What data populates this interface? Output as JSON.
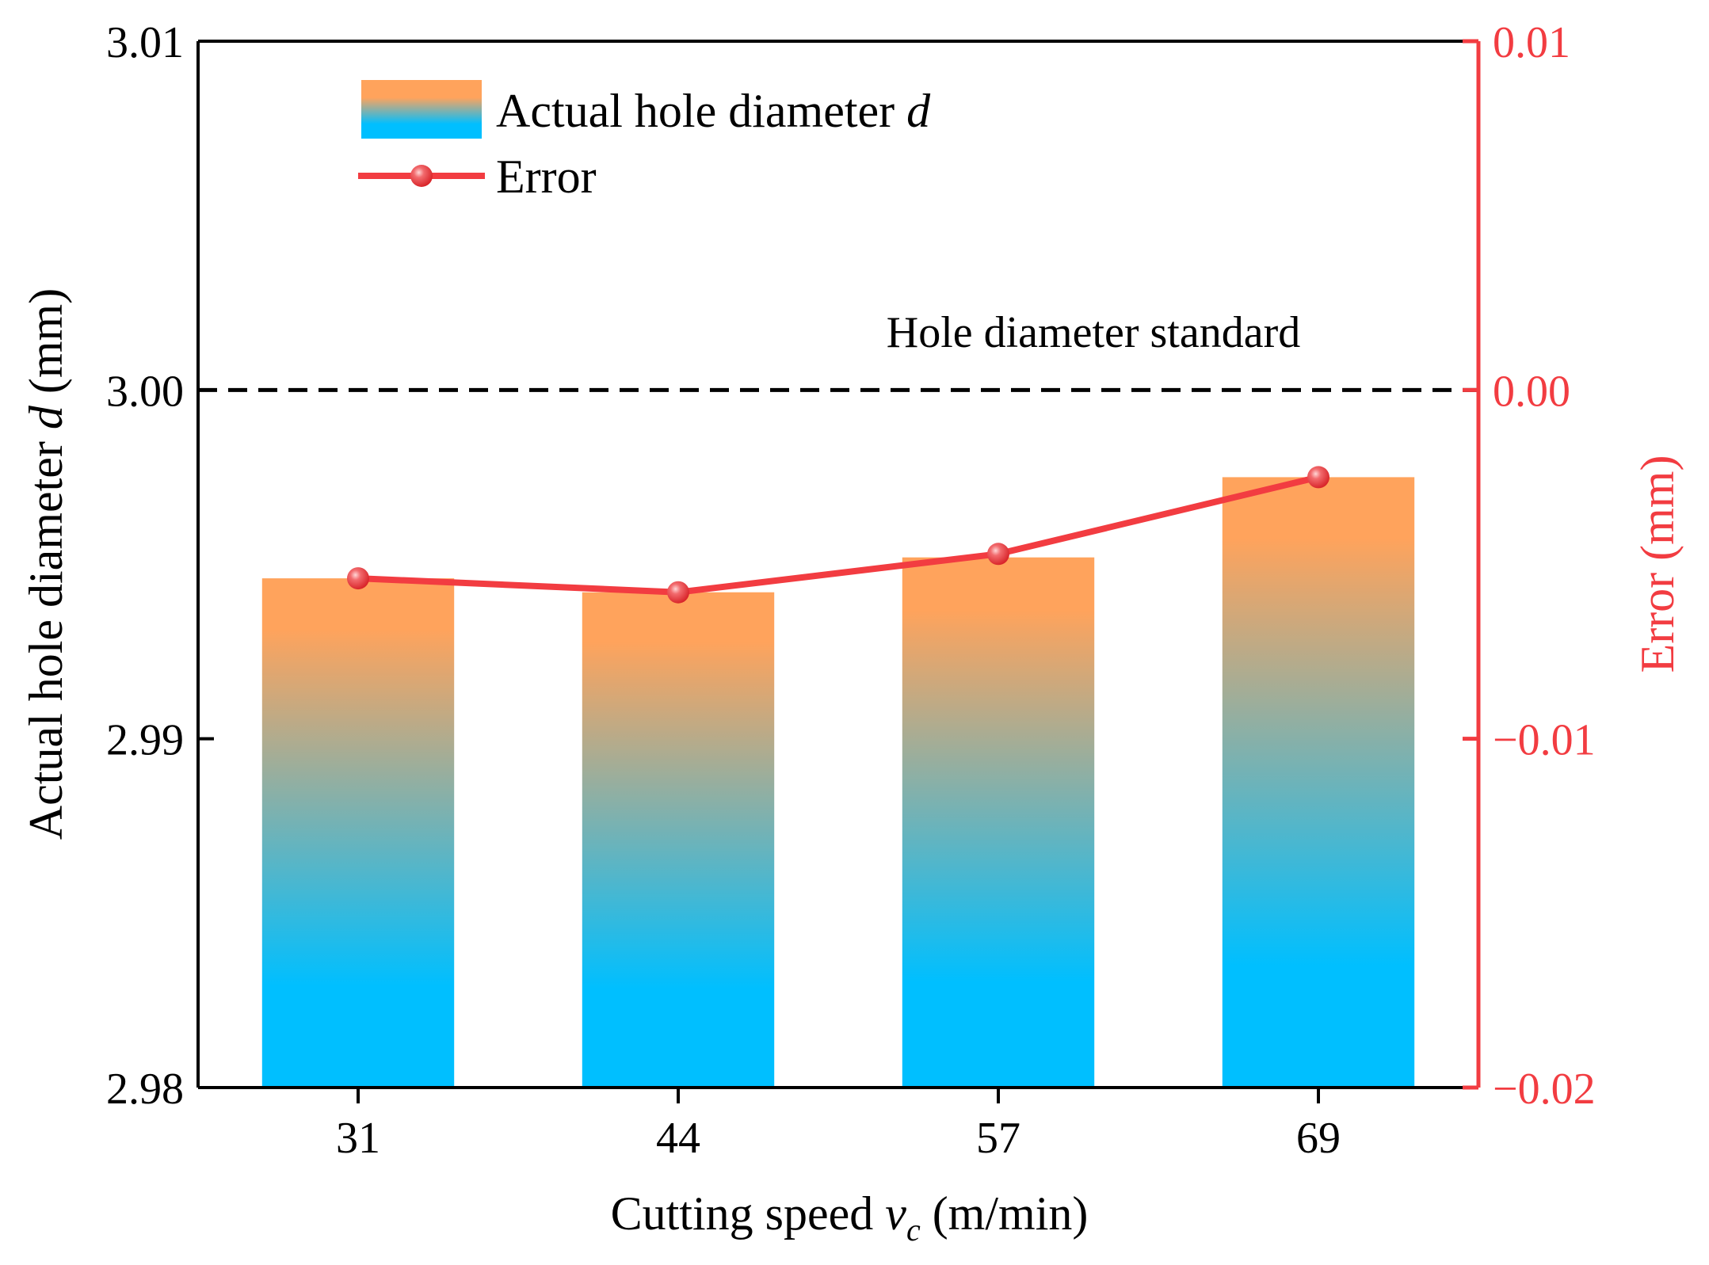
{
  "chart_data": {
    "type": "bar",
    "categories": [
      "31",
      "44",
      "57",
      "69"
    ],
    "series": [
      {
        "name": "Actual hole diameter d",
        "legend_text": "Actual hole diameter ",
        "legend_var": "d",
        "type": "bar",
        "axis": "left",
        "values": [
          2.9946,
          2.9942,
          2.9952,
          2.9975
        ],
        "gradient_top": "#FFA35C",
        "gradient_bottom": "#00BFFF"
      },
      {
        "name": "Error",
        "type": "line",
        "axis": "right",
        "values": [
          -0.0054,
          -0.0058,
          -0.0047,
          -0.0025
        ],
        "color": "#F23C41"
      }
    ],
    "xlabel": {
      "prefix": "Cutting speed ",
      "var": "v",
      "sub": "c",
      "suffix": " (m/min)"
    },
    "ylabel_left": {
      "prefix": "Actual hole diameter ",
      "var": "d",
      "suffix": " (mm)"
    },
    "ylabel_right": "Error (mm)",
    "ylim_left": [
      2.98,
      3.01
    ],
    "yticks_left": [
      "2.98",
      "2.99",
      "3.00",
      "3.01"
    ],
    "ylim_right": [
      -0.02,
      0.01
    ],
    "yticks_right": [
      "−0.02",
      "−0.01",
      "0.00",
      "0.01"
    ],
    "reference_line": {
      "value": 3.0,
      "label": "Hole diameter standard",
      "style": "dashed",
      "color": "#000000"
    },
    "legend_position": "top-left",
    "grid": false,
    "axis_color_left": "#000000",
    "axis_color_right": "#F23C41"
  }
}
